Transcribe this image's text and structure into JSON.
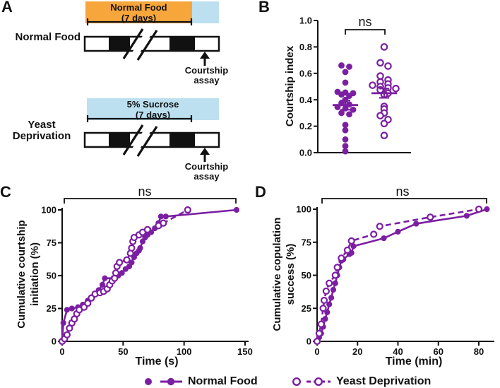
{
  "panels": {
    "a": {
      "label": "A",
      "normal_food": {
        "row_label": "Normal Food",
        "box_line1": "Normal Food",
        "box_line2": "(7 days)",
        "assay_line1": "Courtship",
        "assay_line2": "assay"
      },
      "yeast_deprivation": {
        "row_label_line1": "Yeast",
        "row_label_line2": "Deprivation",
        "box_line1": "5% Sucrose",
        "box_line2": "(7 days)",
        "assay_line1": "Courtship",
        "assay_line2": "assay"
      }
    },
    "b": {
      "label": "B",
      "ylabel": "Courtship index",
      "significance": "ns"
    },
    "c": {
      "label": "C",
      "ylabel_line1": "Cumulative courtship",
      "ylabel_line2": "initiation (%)",
      "xlabel": "Time (s)",
      "significance": "ns"
    },
    "d": {
      "label": "D",
      "ylabel_line1": "Cumulative copulation",
      "ylabel_line2": "success (%)",
      "xlabel": "Time (min)",
      "significance": "ns"
    }
  },
  "legend": {
    "normal_food": "Normal Food",
    "yeast_deprivation": "Yeast Deprivation"
  },
  "colors": {
    "purple": "#7B1FA2",
    "orange": "#F7A63C",
    "light_blue": "#BCE0F0",
    "ink": "#111111"
  },
  "chart_data": [
    {
      "panel": "B",
      "type": "scatter",
      "ylabel": "Courtship index",
      "ylim": [
        0.0,
        1.0
      ],
      "yticks": [
        "0.0",
        "0.2",
        "0.4",
        "0.6",
        "0.8",
        "1.0"
      ],
      "significance": "ns",
      "groups": [
        {
          "name": "Normal Food",
          "marker": "filled",
          "mean": 0.36,
          "sem": 0.035,
          "values": [
            0.66,
            0.65,
            0.61,
            0.53,
            0.46,
            0.455,
            0.45,
            0.44,
            0.43,
            0.4,
            0.375,
            0.365,
            0.345,
            0.335,
            0.325,
            0.3,
            0.29,
            0.21,
            0.17,
            0.1,
            0.05,
            0.01
          ]
        },
        {
          "name": "Yeast Deprivation",
          "marker": "open",
          "mean": 0.45,
          "sem": 0.035,
          "values": [
            0.8,
            0.68,
            0.655,
            0.58,
            0.55,
            0.535,
            0.52,
            0.51,
            0.5,
            0.49,
            0.485,
            0.475,
            0.45,
            0.44,
            0.35,
            0.33,
            0.3,
            0.28,
            0.25,
            0.22,
            0.13
          ]
        }
      ]
    },
    {
      "panel": "C",
      "type": "line",
      "xlabel": "Time (s)",
      "ylabel": "Cumulative courtship initiation (%)",
      "xlim": [
        0,
        150
      ],
      "ylim": [
        0,
        100
      ],
      "xticks": [
        0,
        50,
        100,
        150
      ],
      "yticks": [
        0,
        25,
        50,
        75,
        100
      ],
      "significance": "ns",
      "series": [
        {
          "name": "Normal Food",
          "line": "solid",
          "marker": "filled",
          "points": [
            [
              0,
              0
            ],
            [
              1,
              14
            ],
            [
              4,
              24
            ],
            [
              8,
              25
            ],
            [
              13,
              26
            ],
            [
              17,
              28
            ],
            [
              21,
              31
            ],
            [
              24,
              33
            ],
            [
              27,
              36
            ],
            [
              30,
              39
            ],
            [
              33,
              43
            ],
            [
              35,
              48
            ],
            [
              42,
              48
            ],
            [
              46,
              50
            ],
            [
              49,
              52
            ],
            [
              52,
              55
            ],
            [
              55,
              57
            ],
            [
              57,
              60
            ],
            [
              59,
              64
            ],
            [
              61,
              67
            ],
            [
              63,
              69
            ],
            [
              64,
              71
            ],
            [
              66,
              76
            ],
            [
              68,
              79
            ],
            [
              70,
              81
            ],
            [
              73,
              83
            ],
            [
              76,
              86
            ],
            [
              79,
              90
            ],
            [
              81,
              95
            ],
            [
              85,
              95
            ],
            [
              143,
              100
            ]
          ]
        },
        {
          "name": "Yeast Deprivation",
          "line": "dashed",
          "marker": "open",
          "points": [
            [
              0,
              0
            ],
            [
              2,
              2
            ],
            [
              4,
              5
            ],
            [
              6,
              10
            ],
            [
              8,
              14
            ],
            [
              10,
              17
            ],
            [
              12,
              21
            ],
            [
              14,
              24
            ],
            [
              18,
              26
            ],
            [
              21,
              29
            ],
            [
              24,
              33
            ],
            [
              27,
              36
            ],
            [
              31,
              37
            ],
            [
              34,
              38
            ],
            [
              37,
              40
            ],
            [
              39,
              43
            ],
            [
              41,
              46
            ],
            [
              43,
              48
            ],
            [
              44,
              52
            ],
            [
              45,
              57
            ],
            [
              47,
              60
            ],
            [
              53,
              62
            ],
            [
              56,
              67
            ],
            [
              57,
              71
            ],
            [
              58,
              76
            ],
            [
              59,
              79
            ],
            [
              63,
              81
            ],
            [
              66,
              83
            ],
            [
              70,
              85
            ],
            [
              79,
              88
            ],
            [
              83,
              90
            ],
            [
              103,
              100
            ]
          ]
        }
      ]
    },
    {
      "panel": "D",
      "type": "line",
      "xlabel": "Time (min)",
      "ylabel": "Cumulative copulation success (%)",
      "xlim": [
        0,
        88
      ],
      "ylim": [
        0,
        100
      ],
      "xticks": [
        0,
        20,
        40,
        60,
        80
      ],
      "yticks": [
        0,
        25,
        50,
        75,
        100
      ],
      "significance": "ns",
      "series": [
        {
          "name": "Normal Food",
          "line": "solid",
          "marker": "filled",
          "points": [
            [
              0,
              0
            ],
            [
              1,
              3
            ],
            [
              2,
              6
            ],
            [
              3,
              11
            ],
            [
              4,
              17
            ],
            [
              5,
              22
            ],
            [
              6,
              28
            ],
            [
              7,
              33
            ],
            [
              8,
              39
            ],
            [
              9,
              44
            ],
            [
              10,
              50
            ],
            [
              11,
              56
            ],
            [
              12,
              61
            ],
            [
              13,
              62
            ],
            [
              16,
              66
            ],
            [
              17,
              67
            ],
            [
              18,
              72
            ],
            [
              33,
              78
            ],
            [
              40,
              83
            ],
            [
              49,
              89
            ],
            [
              74,
              95
            ],
            [
              84,
              100
            ]
          ]
        },
        {
          "name": "Yeast Deprivation",
          "line": "dashed",
          "marker": "open",
          "points": [
            [
              0,
              0
            ],
            [
              1,
              6
            ],
            [
              2,
              13
            ],
            [
              3,
              25
            ],
            [
              3.5,
              31
            ],
            [
              4.5,
              38
            ],
            [
              6,
              44
            ],
            [
              9,
              50
            ],
            [
              10,
              56
            ],
            [
              12,
              63
            ],
            [
              15,
              69
            ],
            [
              17,
              76
            ],
            [
              28,
              81
            ],
            [
              31,
              87
            ],
            [
              56,
              94
            ],
            [
              80,
              100
            ]
          ]
        }
      ]
    }
  ]
}
